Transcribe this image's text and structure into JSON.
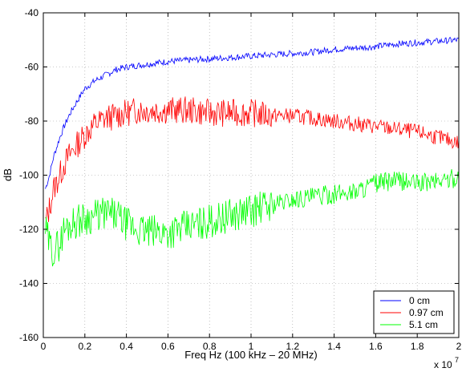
{
  "chart_data": {
    "type": "line",
    "title": "",
    "xlabel": "Freq Hz (100 kHz – 20 MHz)",
    "ylabel": "dB",
    "x_multiplier_label": "x 10",
    "x_multiplier_exponent": "7",
    "xlim": [
      0,
      2
    ],
    "ylim": [
      -160,
      -40
    ],
    "xticks": [
      "0",
      "0.2",
      "0.4",
      "0.6",
      "0.8",
      "1",
      "1.2",
      "1.4",
      "1.6",
      "1.8",
      "2"
    ],
    "yticks": [
      "-160",
      "-140",
      "-120",
      "-100",
      "-80",
      "-60",
      "-40"
    ],
    "grid": true,
    "legend_position": "bottom-right",
    "series": [
      {
        "name": "0 cm",
        "color": "#0000ff",
        "x": [
          0.01,
          0.03,
          0.05,
          0.08,
          0.1,
          0.13,
          0.16,
          0.2,
          0.25,
          0.3,
          0.35,
          0.4,
          0.5,
          0.6,
          0.7,
          0.8,
          0.9,
          1.0,
          1.1,
          1.2,
          1.3,
          1.4,
          1.5,
          1.6,
          1.7,
          1.8,
          1.9,
          2.0
        ],
        "y": [
          -105,
          -100,
          -93,
          -86,
          -82,
          -77,
          -73,
          -68,
          -65,
          -63,
          -61,
          -60,
          -59,
          -58,
          -57.5,
          -57,
          -56.5,
          -56,
          -55.5,
          -55,
          -54.5,
          -53.5,
          -53,
          -52.5,
          -51.5,
          -51,
          -50.5,
          -50
        ]
      },
      {
        "name": "0.97 cm",
        "color": "#ff0000",
        "x": [
          0.01,
          0.03,
          0.05,
          0.08,
          0.1,
          0.13,
          0.16,
          0.2,
          0.25,
          0.3,
          0.35,
          0.4,
          0.45,
          0.5,
          0.55,
          0.6,
          0.7,
          0.8,
          0.9,
          1.0,
          1.1,
          1.2,
          1.3,
          1.4,
          1.5,
          1.6,
          1.7,
          1.8,
          1.9,
          2.0
        ],
        "y": [
          -118,
          -112,
          -105,
          -100,
          -96,
          -92,
          -89,
          -85,
          -81,
          -79,
          -78,
          -77,
          -76,
          -76,
          -76,
          -76,
          -76,
          -77,
          -77,
          -77,
          -78,
          -78,
          -79,
          -80,
          -81,
          -82,
          -83,
          -84,
          -86,
          -88
        ]
      },
      {
        "name": "5.1 cm",
        "color": "#00ff00",
        "x": [
          0.01,
          0.03,
          0.05,
          0.08,
          0.1,
          0.13,
          0.16,
          0.2,
          0.25,
          0.3,
          0.35,
          0.4,
          0.45,
          0.5,
          0.55,
          0.6,
          0.65,
          0.7,
          0.8,
          0.9,
          1.0,
          1.1,
          1.2,
          1.3,
          1.4,
          1.5,
          1.6,
          1.7,
          1.8,
          1.9,
          2.0
        ],
        "y": [
          -120,
          -126,
          -128,
          -125,
          -120,
          -118,
          -117,
          -116,
          -115,
          -114,
          -115,
          -118,
          -120,
          -121,
          -121,
          -121,
          -120,
          -119,
          -117,
          -115,
          -113,
          -111,
          -109,
          -108,
          -107,
          -106,
          -103,
          -102,
          -103,
          -102,
          -101
        ]
      }
    ]
  }
}
